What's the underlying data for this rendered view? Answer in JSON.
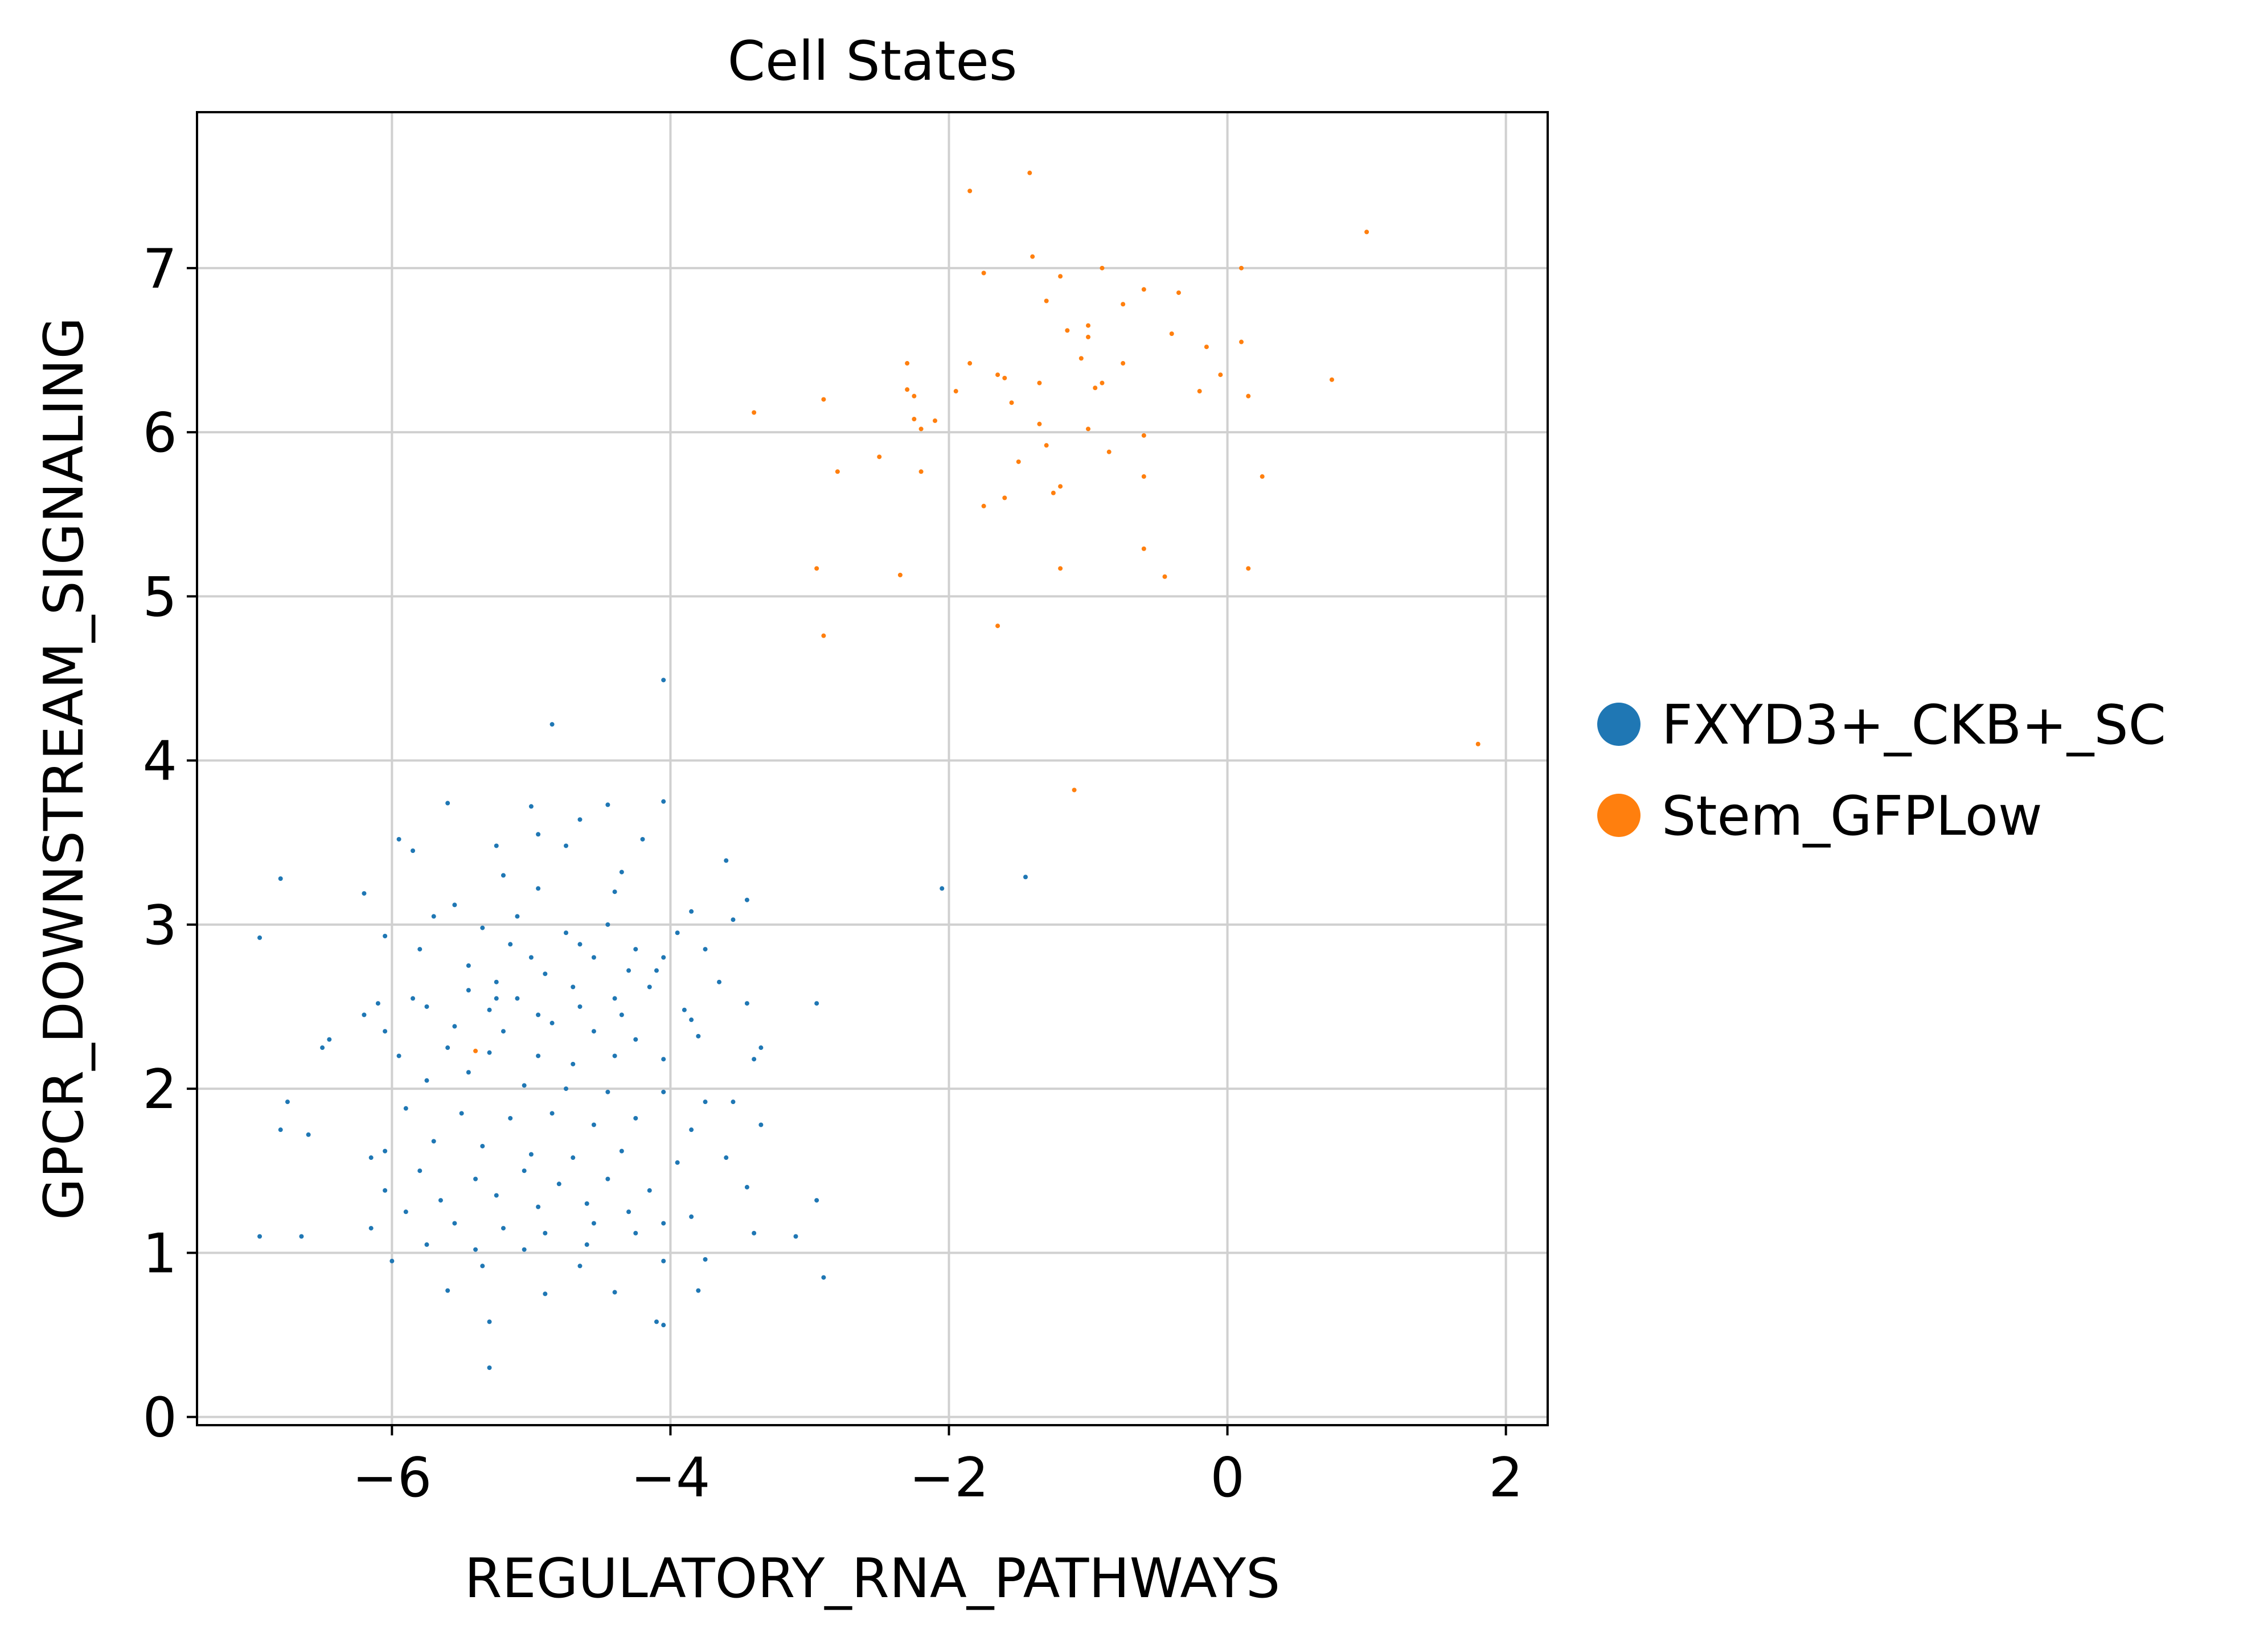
{
  "chart_data": {
    "type": "scatter",
    "title": "Cell States",
    "xlabel": "REGULATORY_RNA_PATHWAYS",
    "ylabel": "GPCR_DOWNSTREAM_SIGNALING",
    "xlim": [
      -7.4,
      2.3
    ],
    "ylim": [
      -0.05,
      7.95
    ],
    "xticks": [
      -6,
      -4,
      -2,
      0,
      2
    ],
    "xtick_labels": [
      "−6",
      "−4",
      "−2",
      "0",
      "2"
    ],
    "yticks": [
      0,
      1,
      2,
      3,
      4,
      5,
      6,
      7
    ],
    "ytick_labels": [
      "0",
      "1",
      "2",
      "3",
      "4",
      "5",
      "6",
      "7"
    ],
    "grid": true,
    "legend_position": "right",
    "series": [
      {
        "name": "FXYD3+_CKB+_SC",
        "color": "#1f77b4",
        "points": [
          [
            -4.05,
            4.49
          ],
          [
            -4.85,
            4.22
          ],
          [
            -4.05,
            3.75
          ],
          [
            -4.45,
            3.73
          ],
          [
            -5.0,
            3.72
          ],
          [
            -5.6,
            3.74
          ],
          [
            -4.65,
            3.64
          ],
          [
            -4.95,
            3.55
          ],
          [
            -5.95,
            3.52
          ],
          [
            -5.85,
            3.45
          ],
          [
            -5.25,
            3.48
          ],
          [
            -4.75,
            3.48
          ],
          [
            -4.2,
            3.52
          ],
          [
            -3.6,
            3.39
          ],
          [
            -6.8,
            3.28
          ],
          [
            -4.35,
            3.32
          ],
          [
            -5.2,
            3.3
          ],
          [
            -4.4,
            3.2
          ],
          [
            -6.2,
            3.19
          ],
          [
            -5.55,
            3.12
          ],
          [
            -5.7,
            3.05
          ],
          [
            -3.45,
            3.15
          ],
          [
            -3.55,
            3.03
          ],
          [
            -3.85,
            3.08
          ],
          [
            -3.95,
            2.95
          ],
          [
            -4.65,
            2.88
          ],
          [
            -5.35,
            2.98
          ],
          [
            -6.95,
            2.92
          ],
          [
            -5.1,
            3.05
          ],
          [
            -4.45,
            3.0
          ],
          [
            -6.05,
            2.93
          ],
          [
            -5.8,
            2.85
          ],
          [
            -5.15,
            2.88
          ],
          [
            -5.0,
            2.8
          ],
          [
            -4.75,
            2.95
          ],
          [
            -4.55,
            2.8
          ],
          [
            -4.25,
            2.85
          ],
          [
            -4.05,
            2.8
          ],
          [
            -3.75,
            2.85
          ],
          [
            -5.45,
            2.75
          ],
          [
            -5.25,
            2.65
          ],
          [
            -4.9,
            2.7
          ],
          [
            -4.3,
            2.72
          ],
          [
            -4.1,
            2.72
          ],
          [
            -5.85,
            2.55
          ],
          [
            -5.45,
            2.6
          ],
          [
            -5.1,
            2.55
          ],
          [
            -4.7,
            2.62
          ],
          [
            -4.4,
            2.55
          ],
          [
            -6.1,
            2.52
          ],
          [
            -6.2,
            2.45
          ],
          [
            -5.75,
            2.5
          ],
          [
            -5.3,
            2.48
          ],
          [
            -4.95,
            2.45
          ],
          [
            -4.65,
            2.5
          ],
          [
            -4.35,
            2.45
          ],
          [
            -3.9,
            2.48
          ],
          [
            -3.45,
            2.52
          ],
          [
            -2.95,
            2.52
          ],
          [
            -6.45,
            2.3
          ],
          [
            -6.05,
            2.35
          ],
          [
            -5.55,
            2.38
          ],
          [
            -5.2,
            2.35
          ],
          [
            -4.85,
            2.4
          ],
          [
            -4.55,
            2.35
          ],
          [
            -4.25,
            2.3
          ],
          [
            -3.8,
            2.32
          ],
          [
            -3.35,
            2.25
          ],
          [
            -6.5,
            2.25
          ],
          [
            -5.95,
            2.2
          ],
          [
            -5.6,
            2.25
          ],
          [
            -5.3,
            2.22
          ],
          [
            -4.95,
            2.2
          ],
          [
            -4.7,
            2.15
          ],
          [
            -4.4,
            2.2
          ],
          [
            -4.05,
            2.18
          ],
          [
            -3.4,
            2.18
          ],
          [
            -5.75,
            2.05
          ],
          [
            -5.45,
            2.1
          ],
          [
            -5.05,
            2.02
          ],
          [
            -4.75,
            2.0
          ],
          [
            -4.45,
            1.98
          ],
          [
            -4.05,
            1.98
          ],
          [
            -3.75,
            1.92
          ],
          [
            -3.55,
            1.92
          ],
          [
            -6.75,
            1.92
          ],
          [
            -5.9,
            1.88
          ],
          [
            -5.5,
            1.85
          ],
          [
            -5.15,
            1.82
          ],
          [
            -4.85,
            1.85
          ],
          [
            -4.55,
            1.78
          ],
          [
            -4.25,
            1.82
          ],
          [
            -3.85,
            1.75
          ],
          [
            -3.35,
            1.78
          ],
          [
            -6.8,
            1.75
          ],
          [
            -6.6,
            1.72
          ],
          [
            -6.05,
            1.62
          ],
          [
            -5.7,
            1.68
          ],
          [
            -5.35,
            1.65
          ],
          [
            -5.0,
            1.6
          ],
          [
            -4.7,
            1.58
          ],
          [
            -4.35,
            1.62
          ],
          [
            -3.95,
            1.55
          ],
          [
            -3.6,
            1.58
          ],
          [
            -6.15,
            1.58
          ],
          [
            -5.8,
            1.5
          ],
          [
            -5.4,
            1.45
          ],
          [
            -5.05,
            1.5
          ],
          [
            -4.8,
            1.42
          ],
          [
            -4.45,
            1.45
          ],
          [
            -4.15,
            1.38
          ],
          [
            -3.45,
            1.4
          ],
          [
            -6.05,
            1.38
          ],
          [
            -5.65,
            1.32
          ],
          [
            -5.25,
            1.35
          ],
          [
            -4.95,
            1.28
          ],
          [
            -4.6,
            1.3
          ],
          [
            -4.3,
            1.25
          ],
          [
            -3.85,
            1.22
          ],
          [
            -2.95,
            1.32
          ],
          [
            -5.9,
            1.25
          ],
          [
            -5.55,
            1.18
          ],
          [
            -5.2,
            1.15
          ],
          [
            -4.9,
            1.12
          ],
          [
            -4.55,
            1.18
          ],
          [
            -4.25,
            1.12
          ],
          [
            -3.4,
            1.12
          ],
          [
            -3.1,
            1.1
          ],
          [
            -6.15,
            1.15
          ],
          [
            -6.95,
            1.1
          ],
          [
            -6.65,
            1.1
          ],
          [
            -5.75,
            1.05
          ],
          [
            -5.4,
            1.02
          ],
          [
            -5.05,
            1.02
          ],
          [
            -4.6,
            1.05
          ],
          [
            -4.05,
            1.18
          ],
          [
            -6.0,
            0.95
          ],
          [
            -5.35,
            0.92
          ],
          [
            -4.65,
            0.92
          ],
          [
            -4.05,
            0.95
          ],
          [
            -3.75,
            0.96
          ],
          [
            -2.9,
            0.85
          ],
          [
            -5.6,
            0.77
          ],
          [
            -4.9,
            0.75
          ],
          [
            -4.4,
            0.76
          ],
          [
            -3.8,
            0.77
          ],
          [
            -5.3,
            0.58
          ],
          [
            -4.1,
            0.58
          ],
          [
            -4.05,
            0.56
          ],
          [
            -5.3,
            0.3
          ],
          [
            -2.05,
            3.22
          ],
          [
            -1.45,
            3.29
          ],
          [
            -4.95,
            3.22
          ],
          [
            -5.25,
            2.55
          ],
          [
            -4.15,
            2.62
          ],
          [
            -3.65,
            2.65
          ],
          [
            -3.85,
            2.42
          ]
        ]
      },
      {
        "name": "Stem_GFPLow",
        "color": "#ff7f0e",
        "points": [
          [
            -1.42,
            7.58
          ],
          [
            -1.85,
            7.47
          ],
          [
            1.0,
            7.22
          ],
          [
            -1.4,
            7.07
          ],
          [
            -0.9,
            7.0
          ],
          [
            0.1,
            7.0
          ],
          [
            -1.75,
            6.97
          ],
          [
            -1.2,
            6.95
          ],
          [
            -0.6,
            6.87
          ],
          [
            -0.35,
            6.85
          ],
          [
            -1.3,
            6.8
          ],
          [
            -0.75,
            6.78
          ],
          [
            -1.0,
            6.65
          ],
          [
            -1.15,
            6.62
          ],
          [
            -0.4,
            6.6
          ],
          [
            -1.0,
            6.58
          ],
          [
            0.1,
            6.55
          ],
          [
            -0.15,
            6.52
          ],
          [
            -1.05,
            6.45
          ],
          [
            -0.75,
            6.42
          ],
          [
            -2.3,
            6.42
          ],
          [
            -1.85,
            6.42
          ],
          [
            -1.65,
            6.35
          ],
          [
            -1.6,
            6.33
          ],
          [
            -1.35,
            6.3
          ],
          [
            -0.9,
            6.3
          ],
          [
            0.75,
            6.32
          ],
          [
            -0.05,
            6.35
          ],
          [
            -2.3,
            6.26
          ],
          [
            -2.25,
            6.22
          ],
          [
            -1.95,
            6.25
          ],
          [
            -0.95,
            6.27
          ],
          [
            -0.2,
            6.25
          ],
          [
            0.15,
            6.22
          ],
          [
            -2.9,
            6.2
          ],
          [
            -1.55,
            6.18
          ],
          [
            -3.4,
            6.12
          ],
          [
            -2.25,
            6.08
          ],
          [
            -2.1,
            6.07
          ],
          [
            -1.35,
            6.05
          ],
          [
            -1.0,
            6.02
          ],
          [
            -0.6,
            5.98
          ],
          [
            -2.2,
            6.02
          ],
          [
            -1.3,
            5.92
          ],
          [
            -0.85,
            5.88
          ],
          [
            -2.5,
            5.85
          ],
          [
            -1.5,
            5.82
          ],
          [
            -2.2,
            5.76
          ],
          [
            -2.8,
            5.76
          ],
          [
            -1.2,
            5.67
          ],
          [
            -1.25,
            5.63
          ],
          [
            -1.6,
            5.6
          ],
          [
            -0.6,
            5.73
          ],
          [
            0.25,
            5.73
          ],
          [
            -1.75,
            5.55
          ],
          [
            -0.6,
            5.29
          ],
          [
            -2.95,
            5.17
          ],
          [
            -1.2,
            5.17
          ],
          [
            0.15,
            5.17
          ],
          [
            -2.35,
            5.13
          ],
          [
            -0.45,
            5.12
          ],
          [
            -1.65,
            4.82
          ],
          [
            -2.9,
            4.76
          ],
          [
            1.8,
            4.1
          ],
          [
            -1.1,
            3.82
          ],
          [
            -5.4,
            2.23
          ]
        ]
      }
    ]
  }
}
